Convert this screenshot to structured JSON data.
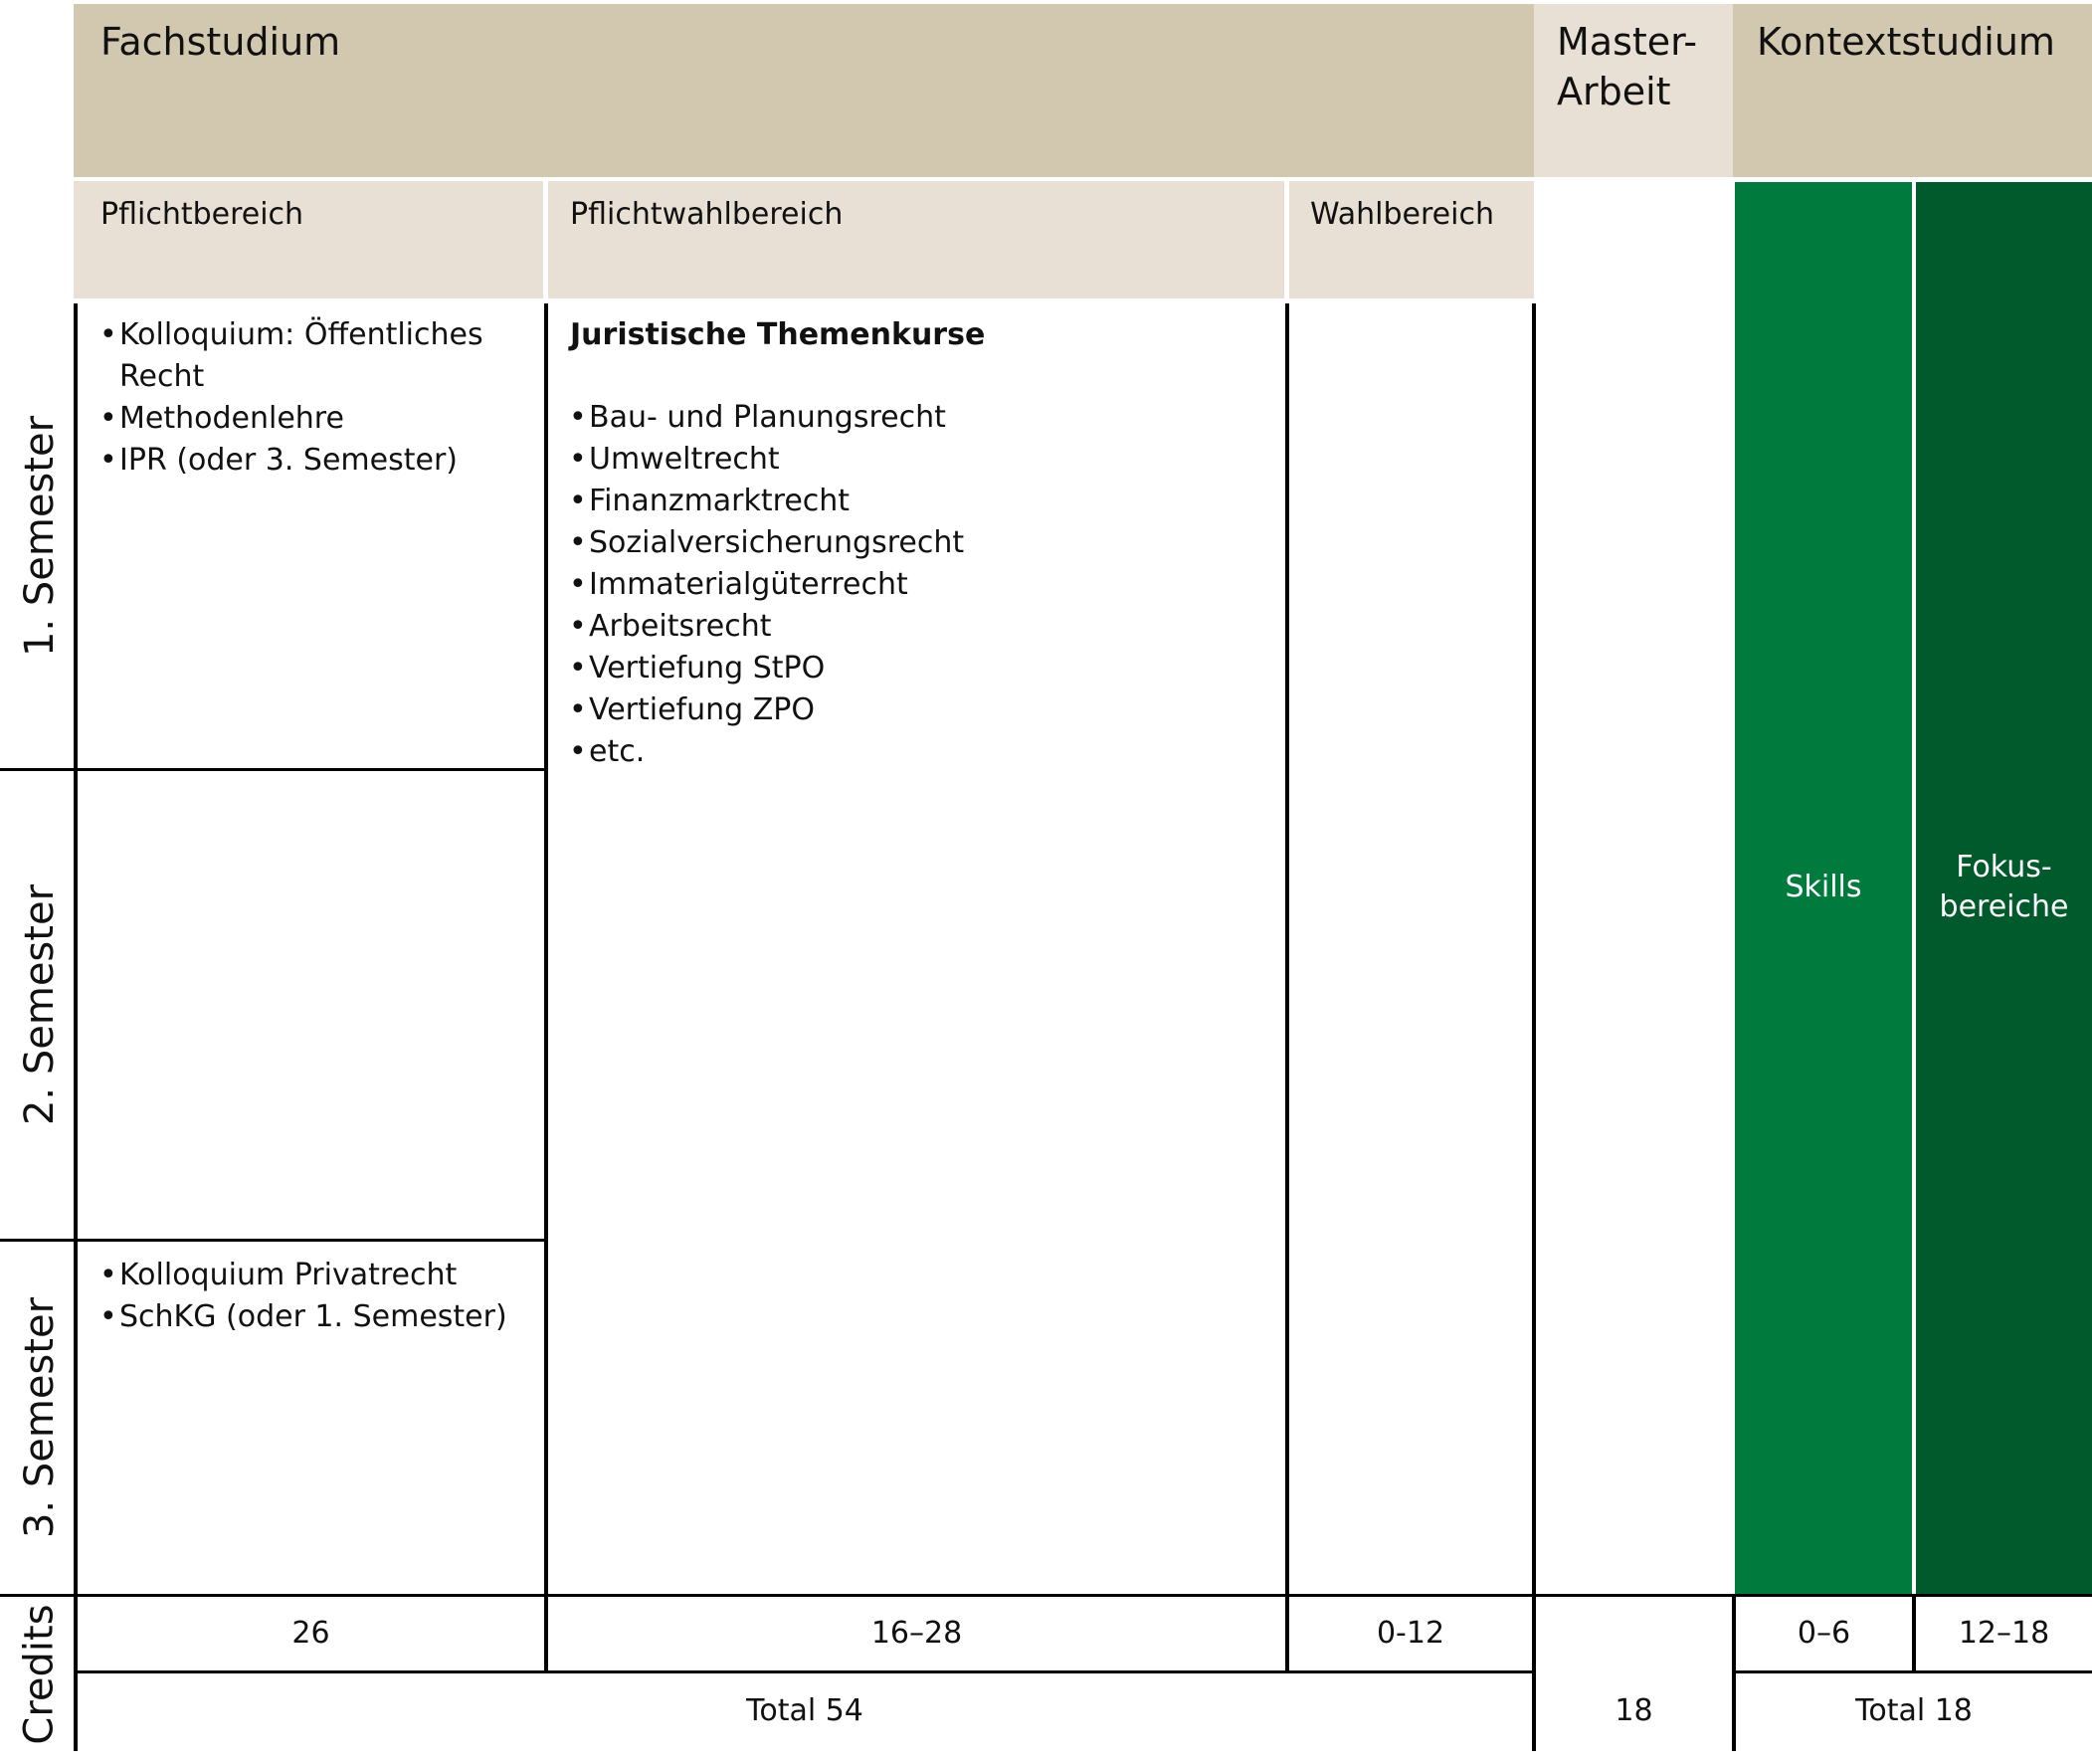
{
  "colors": {
    "header_dark": "#d2c8b0",
    "header_light": "#e8e0d4",
    "green_skills": "#007a3d",
    "green_fokus": "#005a2b",
    "line": "#000000"
  },
  "headers": {
    "fachstudium": "Fachstudium",
    "masterarbeit": "Master-\nArbeit",
    "kontextstudium": "Kontextstudium",
    "pflichtbereich": "Pflichtbereich",
    "pflichtwahlbereich": "Pflichtwahlbereich",
    "wahlbereich": "Wahlbereich"
  },
  "rows": {
    "semester1": "1. Semester",
    "semester2": "2. Semester",
    "semester3": "3. Semester",
    "credits": "Credits"
  },
  "pflicht_sem1": [
    "Kolloquium: Öffentliches\nRecht",
    "Methodenlehre",
    "IPR (oder 3. Semester)"
  ],
  "pflicht_sem3": [
    "Kolloquium Privatrecht",
    "SchKG (oder 1. Semester)"
  ],
  "pflichtwahl": {
    "title": "Juristische Themenkurse",
    "items": [
      "Bau- und Planungsrecht",
      "Umweltrecht",
      "Finanzmarktrecht",
      "Sozialversicherungsrecht",
      "Immaterialgüterrecht",
      "Arbeitsrecht",
      "Vertiefung StPO",
      "Vertiefung ZPO",
      "etc."
    ]
  },
  "kontext": {
    "skills": "Skills",
    "fokus": "Fokus-\nbereiche"
  },
  "credits": {
    "pflicht": "26",
    "pflichtwahl": "16–28",
    "wahl": "0-12",
    "skills": "0–6",
    "fokus": "12–18",
    "total_fach": "Total 54",
    "master": "18",
    "total_kontext": "Total 18"
  }
}
